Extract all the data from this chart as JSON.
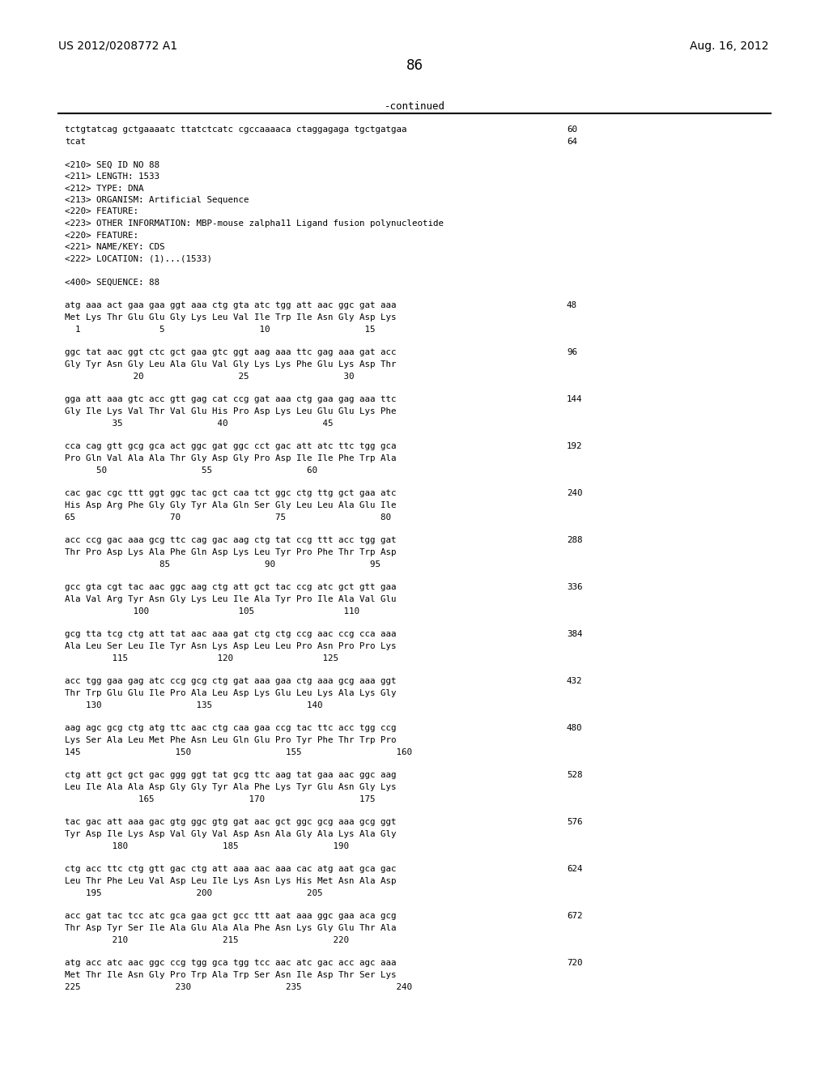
{
  "page_left": "US 2012/0208772 A1",
  "page_right": "Aug. 16, 2012",
  "page_number": "86",
  "continued": "-continued",
  "background_color": "#ffffff",
  "text_color": "#000000",
  "font_size": 8.5,
  "mono_font": "DejaVu Sans Mono",
  "header_font": "DejaVu Sans",
  "lines": [
    {
      "text": "tctgtatcag gctgaaaatc ttatctcatc cgccaaaaca ctaggagaga tgctgatgaa",
      "num": "60",
      "indent": false
    },
    {
      "text": "tcat",
      "num": "64",
      "indent": false
    },
    {
      "text": "",
      "num": "",
      "indent": false
    },
    {
      "text": "<210> SEQ ID NO 88",
      "num": "",
      "indent": false
    },
    {
      "text": "<211> LENGTH: 1533",
      "num": "",
      "indent": false
    },
    {
      "text": "<212> TYPE: DNA",
      "num": "",
      "indent": false
    },
    {
      "text": "<213> ORGANISM: Artificial Sequence",
      "num": "",
      "indent": false
    },
    {
      "text": "<220> FEATURE:",
      "num": "",
      "indent": false
    },
    {
      "text": "<223> OTHER INFORMATION: MBP-mouse zalpha11 Ligand fusion polynucleotide",
      "num": "",
      "indent": false
    },
    {
      "text": "<220> FEATURE:",
      "num": "",
      "indent": false
    },
    {
      "text": "<221> NAME/KEY: CDS",
      "num": "",
      "indent": false
    },
    {
      "text": "<222> LOCATION: (1)...(1533)",
      "num": "",
      "indent": false
    },
    {
      "text": "",
      "num": "",
      "indent": false
    },
    {
      "text": "<400> SEQUENCE: 88",
      "num": "",
      "indent": false
    },
    {
      "text": "",
      "num": "",
      "indent": false
    },
    {
      "text": "atg aaa act gaa gaa ggt aaa ctg gta atc tgg att aac ggc gat aaa",
      "num": "48",
      "indent": false
    },
    {
      "text": "Met Lys Thr Glu Glu Gly Lys Leu Val Ile Trp Ile Asn Gly Asp Lys",
      "num": "",
      "indent": false
    },
    {
      "text": "  1               5                  10                  15",
      "num": "",
      "indent": false
    },
    {
      "text": "",
      "num": "",
      "indent": false
    },
    {
      "text": "ggc tat aac ggt ctc gct gaa gtc ggt aag aaa ttc gag aaa gat acc",
      "num": "96",
      "indent": false
    },
    {
      "text": "Gly Tyr Asn Gly Leu Ala Glu Val Gly Lys Lys Phe Glu Lys Asp Thr",
      "num": "",
      "indent": false
    },
    {
      "text": "             20                  25                  30",
      "num": "",
      "indent": false
    },
    {
      "text": "",
      "num": "",
      "indent": false
    },
    {
      "text": "gga att aaa gtc acc gtt gag cat ccg gat aaa ctg gaa gag aaa ttc",
      "num": "144",
      "indent": false
    },
    {
      "text": "Gly Ile Lys Val Thr Val Glu His Pro Asp Lys Leu Glu Glu Lys Phe",
      "num": "",
      "indent": false
    },
    {
      "text": "         35                  40                  45",
      "num": "",
      "indent": false
    },
    {
      "text": "",
      "num": "",
      "indent": false
    },
    {
      "text": "cca cag gtt gcg gca act ggc gat ggc cct gac att atc ttc tgg gca",
      "num": "192",
      "indent": false
    },
    {
      "text": "Pro Gln Val Ala Ala Thr Gly Asp Gly Pro Asp Ile Ile Phe Trp Ala",
      "num": "",
      "indent": false
    },
    {
      "text": "      50                  55                  60",
      "num": "",
      "indent": false
    },
    {
      "text": "",
      "num": "",
      "indent": false
    },
    {
      "text": "cac gac cgc ttt ggt ggc tac gct caa tct ggc ctg ttg gct gaa atc",
      "num": "240",
      "indent": false
    },
    {
      "text": "His Asp Arg Phe Gly Gly Tyr Ala Gln Ser Gly Leu Leu Ala Glu Ile",
      "num": "",
      "indent": false
    },
    {
      "text": "65                  70                  75                  80",
      "num": "",
      "indent": false
    },
    {
      "text": "",
      "num": "",
      "indent": false
    },
    {
      "text": "acc ccg gac aaa gcg ttc cag gac aag ctg tat ccg ttt acc tgg gat",
      "num": "288",
      "indent": false
    },
    {
      "text": "Thr Pro Asp Lys Ala Phe Gln Asp Lys Leu Tyr Pro Phe Thr Trp Asp",
      "num": "",
      "indent": false
    },
    {
      "text": "                  85                  90                  95",
      "num": "",
      "indent": false
    },
    {
      "text": "",
      "num": "",
      "indent": false
    },
    {
      "text": "gcc gta cgt tac aac ggc aag ctg att gct tac ccg atc gct gtt gaa",
      "num": "336",
      "indent": false
    },
    {
      "text": "Ala Val Arg Tyr Asn Gly Lys Leu Ile Ala Tyr Pro Ile Ala Val Glu",
      "num": "",
      "indent": false
    },
    {
      "text": "             100                 105                 110",
      "num": "",
      "indent": false
    },
    {
      "text": "",
      "num": "",
      "indent": false
    },
    {
      "text": "gcg tta tcg ctg att tat aac aaa gat ctg ctg ccg aac ccg cca aaa",
      "num": "384",
      "indent": false
    },
    {
      "text": "Ala Leu Ser Leu Ile Tyr Asn Lys Asp Leu Leu Pro Asn Pro Pro Lys",
      "num": "",
      "indent": false
    },
    {
      "text": "         115                 120                 125",
      "num": "",
      "indent": false
    },
    {
      "text": "",
      "num": "",
      "indent": false
    },
    {
      "text": "acc tgg gaa gag atc ccg gcg ctg gat aaa gaa ctg aaa gcg aaa ggt",
      "num": "432",
      "indent": false
    },
    {
      "text": "Thr Trp Glu Glu Ile Pro Ala Leu Asp Lys Glu Leu Lys Ala Lys Gly",
      "num": "",
      "indent": false
    },
    {
      "text": "    130                  135                  140",
      "num": "",
      "indent": false
    },
    {
      "text": "",
      "num": "",
      "indent": false
    },
    {
      "text": "aag agc gcg ctg atg ttc aac ctg caa gaa ccg tac ttc acc tgg ccg",
      "num": "480",
      "indent": false
    },
    {
      "text": "Lys Ser Ala Leu Met Phe Asn Leu Gln Glu Pro Tyr Phe Thr Trp Pro",
      "num": "",
      "indent": false
    },
    {
      "text": "145                  150                  155                  160",
      "num": "",
      "indent": false
    },
    {
      "text": "",
      "num": "",
      "indent": false
    },
    {
      "text": "ctg att gct gct gac ggg ggt tat gcg ttc aag tat gaa aac ggc aag",
      "num": "528",
      "indent": false
    },
    {
      "text": "Leu Ile Ala Ala Asp Gly Gly Tyr Ala Phe Lys Tyr Glu Asn Gly Lys",
      "num": "",
      "indent": false
    },
    {
      "text": "              165                  170                  175",
      "num": "",
      "indent": false
    },
    {
      "text": "",
      "num": "",
      "indent": false
    },
    {
      "text": "tac gac att aaa gac gtg ggc gtg gat aac gct ggc gcg aaa gcg ggt",
      "num": "576",
      "indent": false
    },
    {
      "text": "Tyr Asp Ile Lys Asp Val Gly Val Asp Asn Ala Gly Ala Lys Ala Gly",
      "num": "",
      "indent": false
    },
    {
      "text": "         180                  185                  190",
      "num": "",
      "indent": false
    },
    {
      "text": "",
      "num": "",
      "indent": false
    },
    {
      "text": "ctg acc ttc ctg gtt gac ctg att aaa aac aaa cac atg aat gca gac",
      "num": "624",
      "indent": false
    },
    {
      "text": "Leu Thr Phe Leu Val Asp Leu Ile Lys Asn Lys His Met Asn Ala Asp",
      "num": "",
      "indent": false
    },
    {
      "text": "    195                  200                  205",
      "num": "",
      "indent": false
    },
    {
      "text": "",
      "num": "",
      "indent": false
    },
    {
      "text": "acc gat tac tcc atc gca gaa gct gcc ttt aat aaa ggc gaa aca gcg",
      "num": "672",
      "indent": false
    },
    {
      "text": "Thr Asp Tyr Ser Ile Ala Glu Ala Ala Phe Asn Lys Gly Glu Thr Ala",
      "num": "",
      "indent": false
    },
    {
      "text": "         210                  215                  220",
      "num": "",
      "indent": false
    },
    {
      "text": "",
      "num": "",
      "indent": false
    },
    {
      "text": "atg acc atc aac ggc ccg tgg gca tgg tcc aac atc gac acc agc aaa",
      "num": "720",
      "indent": false
    },
    {
      "text": "Met Thr Ile Asn Gly Pro Trp Ala Trp Ser Asn Ile Asp Thr Ser Lys",
      "num": "",
      "indent": false
    },
    {
      "text": "225                  230                  235                  240",
      "num": "",
      "indent": false
    }
  ]
}
